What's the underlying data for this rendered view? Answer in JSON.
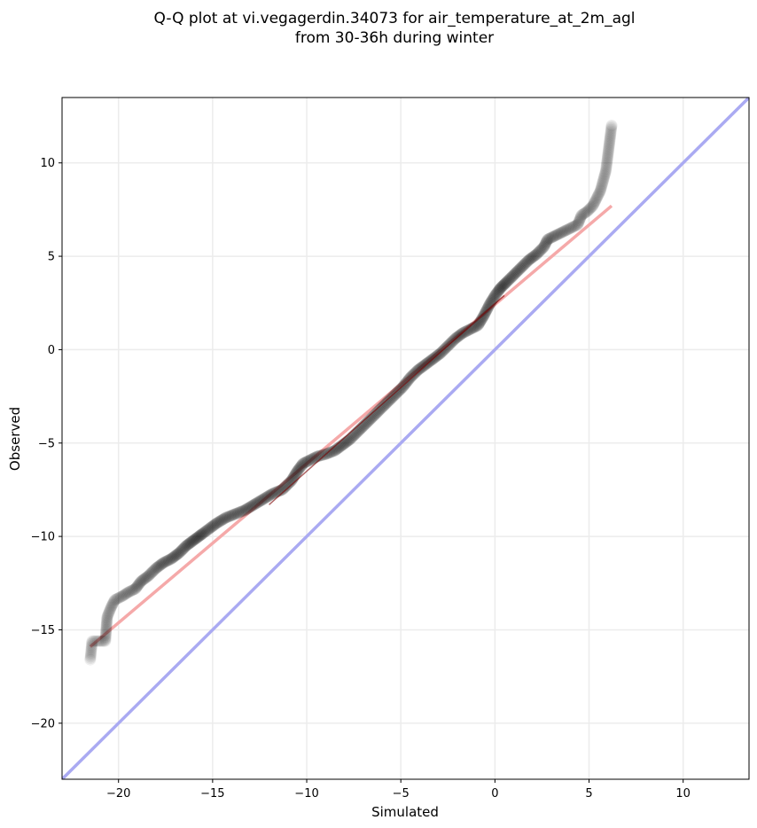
{
  "chart_data": {
    "type": "scatter",
    "title": [
      "Q-Q plot at vi.vegagerdin.34073 for air_temperature_at_2m_agl",
      "from 30-36h during winter"
    ],
    "xlabel": "Simulated",
    "ylabel": "Observed",
    "xlim": [
      -23,
      13.5
    ],
    "ylim": [
      -23,
      13.5
    ],
    "xticks": [
      -20,
      -15,
      -10,
      -5,
      0,
      5,
      10
    ],
    "yticks": [
      -20,
      -15,
      -10,
      -5,
      0,
      5,
      10
    ],
    "xtick_labels": [
      "−20",
      "−15",
      "−10",
      "−5",
      "0",
      "5",
      "10"
    ],
    "ytick_labels": [
      "−20",
      "−15",
      "−10",
      "−5",
      "0",
      "5",
      "10"
    ],
    "grid": true,
    "series": [
      {
        "kind": "reference-line",
        "color": "#aaaaf2",
        "points": [
          [
            -23,
            -23
          ],
          [
            13.5,
            13.5
          ]
        ]
      },
      {
        "kind": "fit-line",
        "color": "#f5a9a9",
        "points": [
          [
            -21.5,
            -15.9
          ],
          [
            6.2,
            7.7
          ]
        ]
      },
      {
        "kind": "quantile-curve",
        "color": "#000000",
        "points": [
          [
            -21.5,
            -16.6
          ],
          [
            -21.4,
            -15.6
          ],
          [
            -20.7,
            -15.6
          ],
          [
            -20.6,
            -14.3
          ],
          [
            -20.4,
            -13.8
          ],
          [
            -20.2,
            -13.4
          ],
          [
            -19.8,
            -13.2
          ],
          [
            -19.5,
            -13.0
          ],
          [
            -19.1,
            -12.8
          ],
          [
            -18.8,
            -12.4
          ],
          [
            -18.4,
            -12.1
          ],
          [
            -18.0,
            -11.7
          ],
          [
            -17.6,
            -11.4
          ],
          [
            -17.2,
            -11.2
          ],
          [
            -16.8,
            -10.9
          ],
          [
            -16.4,
            -10.5
          ],
          [
            -16.0,
            -10.2
          ],
          [
            -15.6,
            -9.9
          ],
          [
            -15.2,
            -9.6
          ],
          [
            -14.8,
            -9.3
          ],
          [
            -14.3,
            -9.0
          ],
          [
            -13.8,
            -8.8
          ],
          [
            -13.3,
            -8.6
          ],
          [
            -12.8,
            -8.3
          ],
          [
            -12.3,
            -8.0
          ],
          [
            -11.8,
            -7.7
          ],
          [
            -11.3,
            -7.5
          ],
          [
            -10.8,
            -7.0
          ],
          [
            -10.5,
            -6.5
          ],
          [
            -10.2,
            -6.1
          ],
          [
            -9.8,
            -5.9
          ],
          [
            -9.4,
            -5.7
          ],
          [
            -9.0,
            -5.6
          ],
          [
            -8.5,
            -5.4
          ],
          [
            -8.1,
            -5.1
          ],
          [
            -7.7,
            -4.8
          ],
          [
            -7.3,
            -4.4
          ],
          [
            -6.9,
            -4.0
          ],
          [
            -6.5,
            -3.6
          ],
          [
            -6.1,
            -3.2
          ],
          [
            -5.7,
            -2.8
          ],
          [
            -5.3,
            -2.4
          ],
          [
            -4.9,
            -2.0
          ],
          [
            -4.5,
            -1.5
          ],
          [
            -4.1,
            -1.1
          ],
          [
            -3.7,
            -0.8
          ],
          [
            -3.3,
            -0.5
          ],
          [
            -2.9,
            -0.2
          ],
          [
            -2.5,
            0.2
          ],
          [
            -2.1,
            0.6
          ],
          [
            -1.7,
            0.9
          ],
          [
            -1.3,
            1.1
          ],
          [
            -0.9,
            1.3
          ],
          [
            -0.6,
            1.8
          ],
          [
            -0.3,
            2.4
          ],
          [
            0.0,
            2.9
          ],
          [
            0.3,
            3.3
          ],
          [
            0.6,
            3.6
          ],
          [
            1.0,
            4.0
          ],
          [
            1.4,
            4.4
          ],
          [
            1.8,
            4.8
          ],
          [
            2.2,
            5.1
          ],
          [
            2.6,
            5.5
          ],
          [
            2.8,
            5.9
          ],
          [
            3.2,
            6.1
          ],
          [
            3.6,
            6.3
          ],
          [
            4.0,
            6.5
          ],
          [
            4.4,
            6.7
          ],
          [
            4.6,
            7.2
          ],
          [
            4.9,
            7.4
          ],
          [
            5.2,
            7.7
          ],
          [
            5.4,
            8.1
          ],
          [
            5.6,
            8.5
          ],
          [
            5.9,
            9.6
          ],
          [
            6.2,
            12.0
          ]
        ]
      }
    ]
  }
}
